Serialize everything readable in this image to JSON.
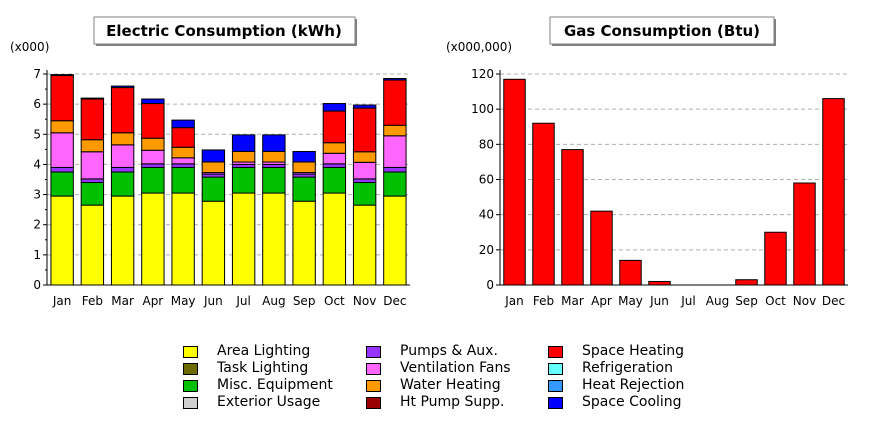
{
  "chart_data": [
    {
      "type": "bar",
      "stacked": true,
      "title": "Electric Consumption (kWh)",
      "unit_label": "(x000)",
      "ylim": [
        0,
        7
      ],
      "yticks": [
        0,
        1,
        2,
        3,
        4,
        5,
        6,
        7
      ],
      "grid": true,
      "categories": [
        "Jan",
        "Feb",
        "Mar",
        "Apr",
        "May",
        "Jun",
        "Jul",
        "Aug",
        "Sep",
        "Oct",
        "Nov",
        "Dec"
      ],
      "series": [
        {
          "name": "Area Lighting",
          "color": "#ffff00",
          "values": [
            2.95,
            2.65,
            2.95,
            3.05,
            3.05,
            2.78,
            3.05,
            3.05,
            2.78,
            3.05,
            2.65,
            2.95
          ]
        },
        {
          "name": "Task Lighting",
          "color": "#6b6b00",
          "values": [
            0,
            0,
            0,
            0,
            0,
            0,
            0,
            0,
            0,
            0,
            0,
            0
          ]
        },
        {
          "name": "Misc. Equipment",
          "color": "#00c000",
          "values": [
            0.8,
            0.75,
            0.8,
            0.85,
            0.85,
            0.8,
            0.85,
            0.85,
            0.8,
            0.85,
            0.75,
            0.8
          ]
        },
        {
          "name": "Exterior Usage",
          "color": "#d0d0d0",
          "values": [
            0,
            0,
            0,
            0,
            0,
            0,
            0,
            0,
            0,
            0,
            0,
            0
          ]
        },
        {
          "name": "Pumps & Aux.",
          "color": "#9933ff",
          "values": [
            0.15,
            0.12,
            0.15,
            0.12,
            0.12,
            0.1,
            0.1,
            0.1,
            0.1,
            0.12,
            0.12,
            0.15
          ]
        },
        {
          "name": "Ventilation Fans",
          "color": "#ff66ff",
          "values": [
            1.15,
            0.9,
            0.75,
            0.45,
            0.2,
            0.05,
            0.08,
            0.08,
            0.05,
            0.35,
            0.55,
            1.05
          ]
        },
        {
          "name": "Water Heating",
          "color": "#ff9900",
          "values": [
            0.4,
            0.4,
            0.4,
            0.4,
            0.35,
            0.35,
            0.35,
            0.35,
            0.35,
            0.35,
            0.35,
            0.35
          ]
        },
        {
          "name": "Ht Pump Supp.",
          "color": "#990000",
          "values": [
            0,
            0,
            0,
            0,
            0,
            0,
            0,
            0,
            0,
            0,
            0,
            0
          ]
        },
        {
          "name": "Space Heating",
          "color": "#ff0000",
          "values": [
            1.5,
            1.35,
            1.5,
            1.15,
            0.65,
            0,
            0,
            0,
            0,
            1.05,
            1.45,
            1.5
          ]
        },
        {
          "name": "Refrigeration",
          "color": "#66ffff",
          "values": [
            0,
            0,
            0,
            0,
            0,
            0,
            0,
            0,
            0,
            0,
            0,
            0
          ]
        },
        {
          "name": "Heat Rejection",
          "color": "#3399ff",
          "values": [
            0,
            0,
            0,
            0,
            0,
            0,
            0,
            0,
            0,
            0,
            0,
            0
          ]
        },
        {
          "name": "Space Cooling",
          "color": "#0000ff",
          "values": [
            0.03,
            0.03,
            0.05,
            0.15,
            0.25,
            0.4,
            0.55,
            0.55,
            0.35,
            0.25,
            0.1,
            0.05
          ]
        }
      ]
    },
    {
      "type": "bar",
      "title": "Gas Consumption (Btu)",
      "unit_label": "(x000,000)",
      "ylim": [
        0,
        120
      ],
      "yticks": [
        0,
        20,
        40,
        60,
        80,
        100,
        120
      ],
      "grid": true,
      "categories": [
        "Jan",
        "Feb",
        "Mar",
        "Apr",
        "May",
        "Jun",
        "Jul",
        "Aug",
        "Sep",
        "Oct",
        "Nov",
        "Dec"
      ],
      "series": [
        {
          "name": "Space Heating",
          "color": "#ff0000",
          "values": [
            117,
            92,
            77,
            42,
            14,
            2,
            0,
            0,
            3,
            30,
            58,
            106
          ]
        }
      ]
    }
  ],
  "legend": {
    "columns": [
      [
        {
          "label": "Area Lighting",
          "color": "#ffff00"
        },
        {
          "label": "Task Lighting",
          "color": "#6b6b00"
        },
        {
          "label": "Misc. Equipment",
          "color": "#00c000"
        },
        {
          "label": "Exterior Usage",
          "color": "#d0d0d0"
        }
      ],
      [
        {
          "label": "Pumps & Aux.",
          "color": "#9933ff"
        },
        {
          "label": "Ventilation Fans",
          "color": "#ff66ff"
        },
        {
          "label": "Water Heating",
          "color": "#ff9900"
        },
        {
          "label": "Ht Pump Supp.",
          "color": "#990000"
        }
      ],
      [
        {
          "label": "Space Heating",
          "color": "#ff0000"
        },
        {
          "label": "Refrigeration",
          "color": "#66ffff"
        },
        {
          "label": "Heat Rejection",
          "color": "#3399ff"
        },
        {
          "label": "Space Cooling",
          "color": "#0000ff"
        }
      ]
    ]
  }
}
